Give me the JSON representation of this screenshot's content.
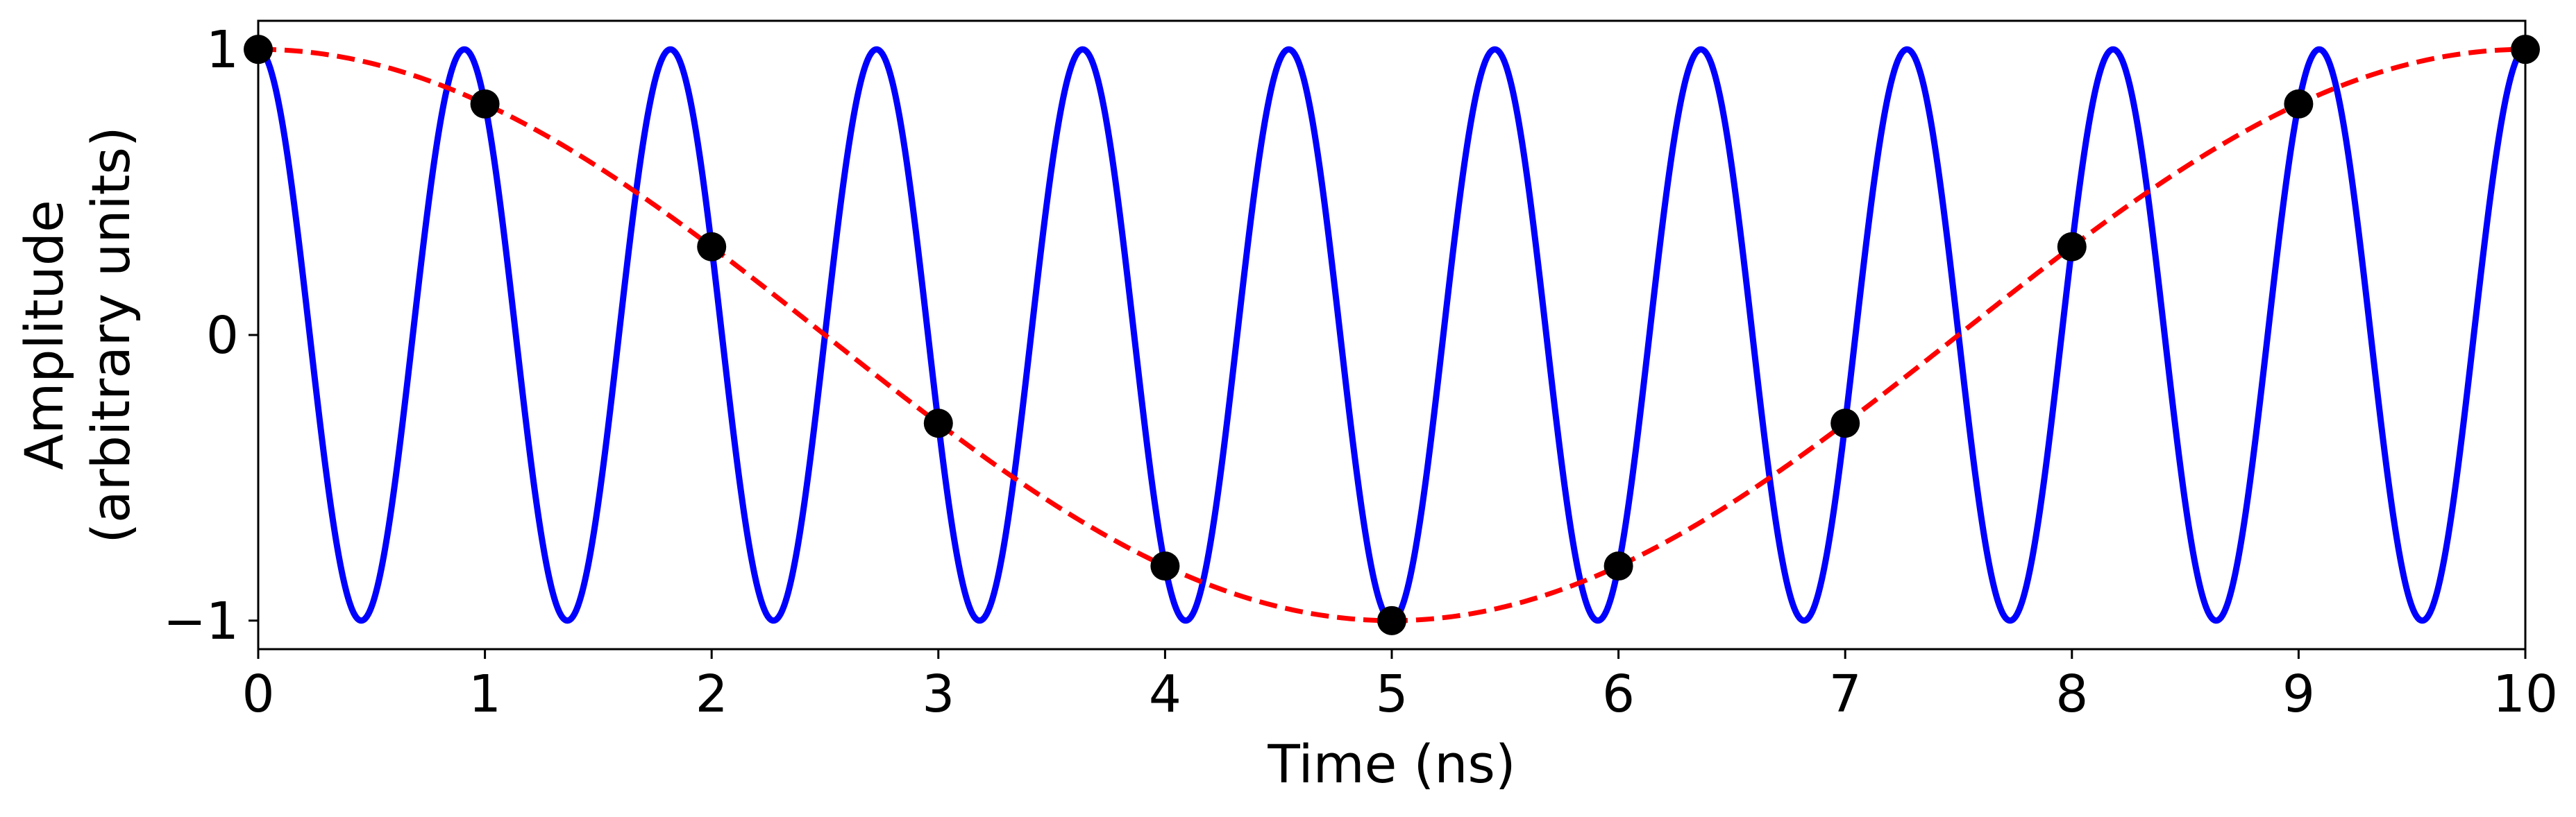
{
  "chart_data": {
    "type": "line",
    "title": "",
    "xlabel": "Time (ns)",
    "ylabel_lines": [
      "Amplitude",
      "(arbitrary units)"
    ],
    "xlim": [
      0,
      10
    ],
    "ylim": [
      -1.1,
      1.1
    ],
    "x_ticks": [
      0,
      1,
      2,
      3,
      4,
      5,
      6,
      7,
      8,
      9,
      10
    ],
    "x_tick_labels": [
      "0",
      "1",
      "2",
      "3",
      "4",
      "5",
      "6",
      "7",
      "8",
      "9",
      "10"
    ],
    "y_ticks": [
      -1,
      0,
      1
    ],
    "y_tick_labels": [
      "−1",
      "0",
      "1"
    ],
    "grid": false,
    "legend": "none",
    "series": [
      {
        "style": "solid line",
        "color": "#0000ff",
        "function": "cos(2*pi*1.1*t)",
        "frequency_ghz": 1.1
      },
      {
        "style": "dashed line",
        "color": "#ff0000",
        "function": "cos(2*pi*0.1*t)",
        "frequency_ghz": 0.1
      },
      {
        "style": "markers",
        "color": "#000000",
        "x": [
          0,
          1,
          2,
          3,
          4,
          5,
          6,
          7,
          8,
          9,
          10
        ],
        "y": [
          1.0,
          0.809,
          0.309,
          -0.309,
          -0.809,
          -1.0,
          -0.809,
          -0.309,
          0.309,
          0.809,
          1.0
        ]
      }
    ]
  }
}
